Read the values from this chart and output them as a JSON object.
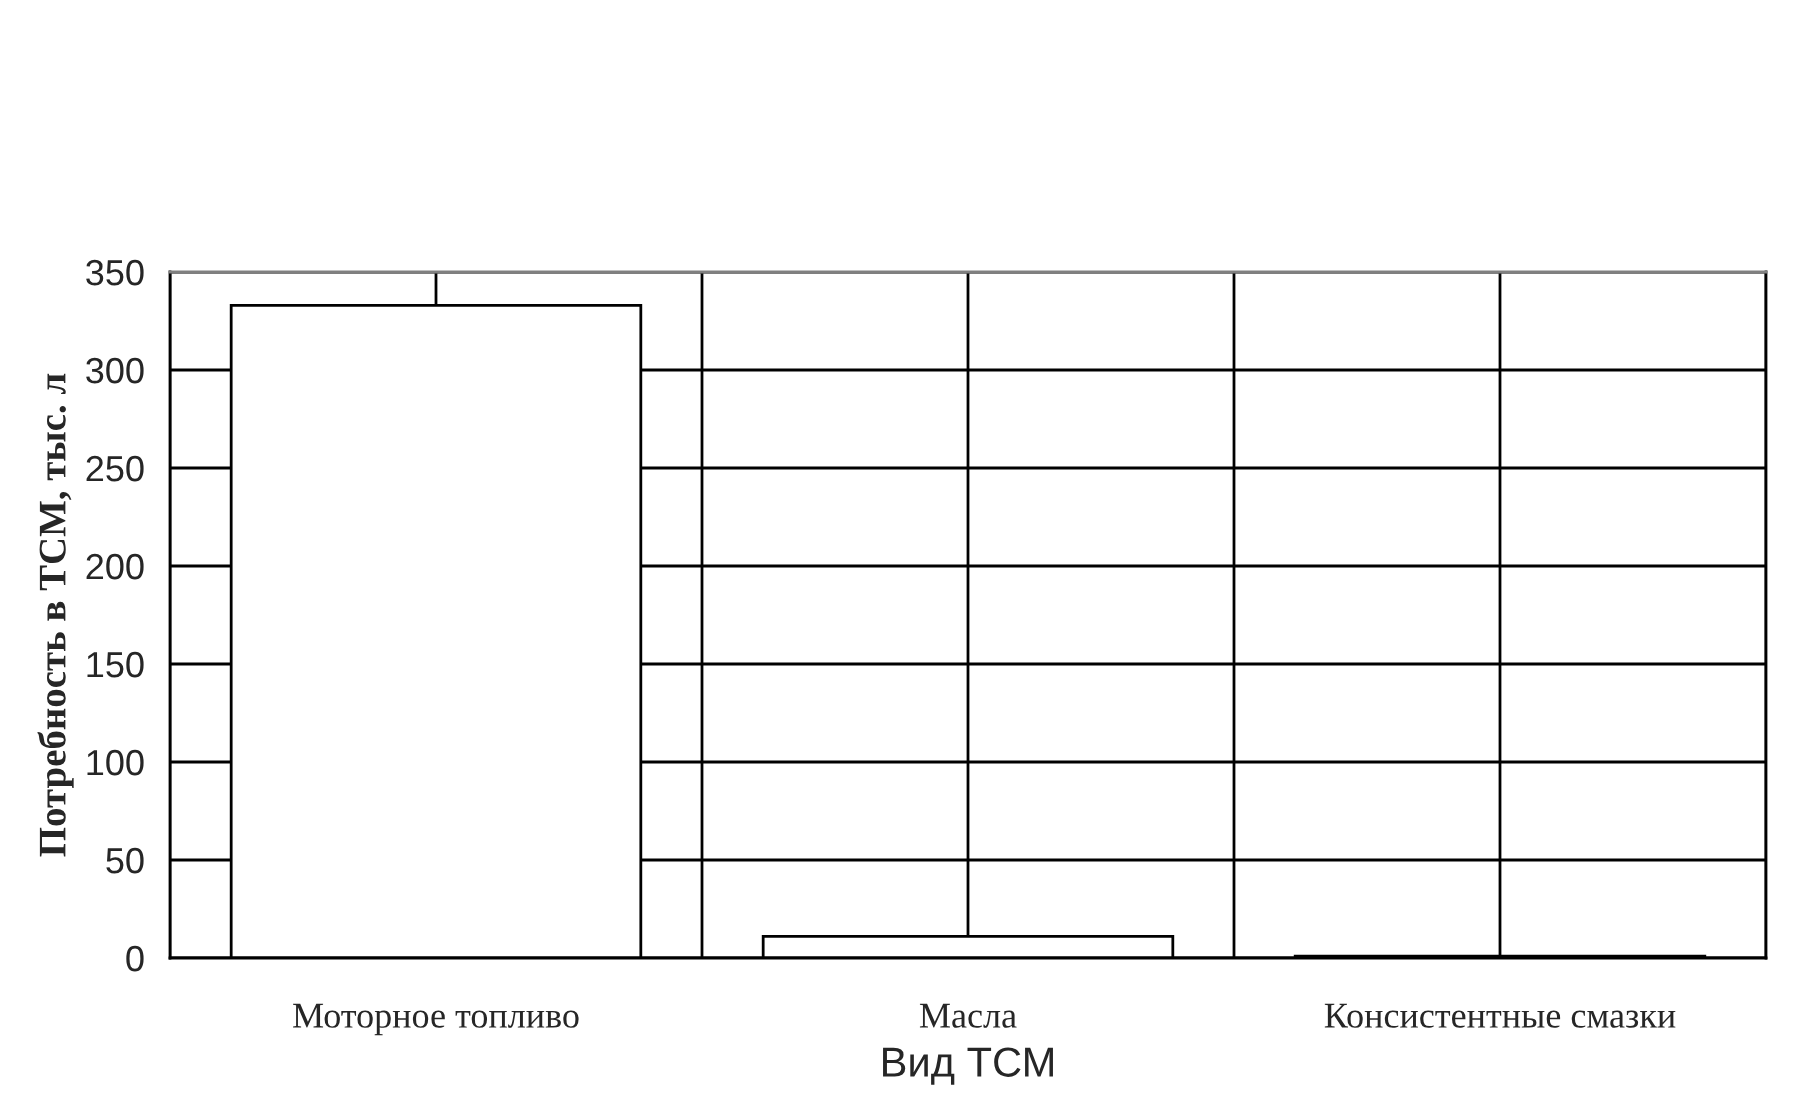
{
  "chart_data": {
    "type": "bar",
    "categories": [
      "Моторное топливо",
      "Масла",
      "Консистентные смазки"
    ],
    "values": [
      333,
      11,
      1
    ],
    "color": "#ffffff",
    "xlabel": "Вид ТСМ",
    "ylabel": "Потребность в ТСМ, тыс. л",
    "ylim": [
      0,
      350
    ],
    "yticks": [
      0,
      50,
      100,
      150,
      200,
      250,
      300,
      350
    ],
    "grid": true
  }
}
